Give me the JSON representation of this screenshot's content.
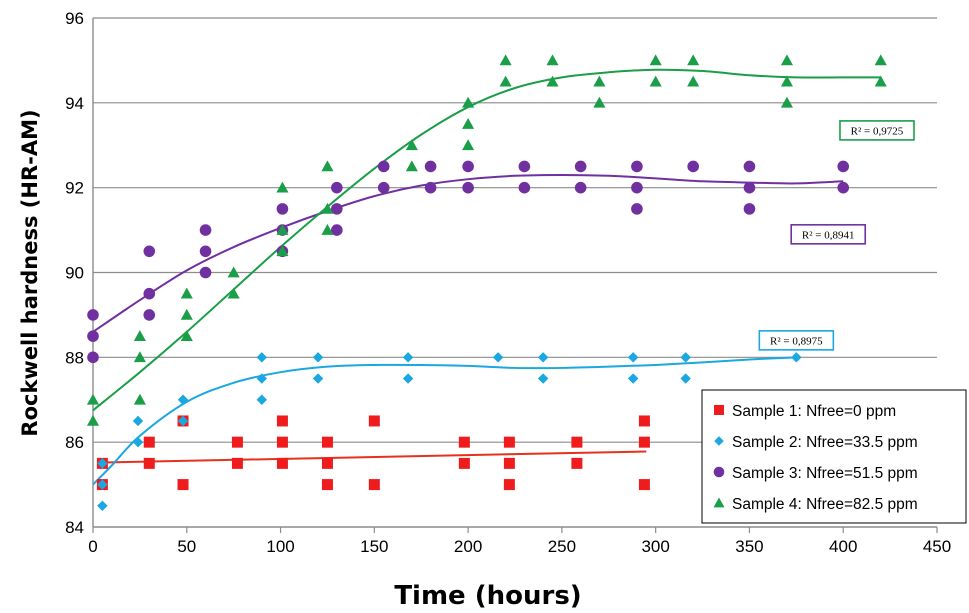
{
  "chart_data": {
    "type": "scatter",
    "xlabel": "Time (hours)",
    "ylabel": "Rockwell hardness (HR-AM)",
    "xlim": [
      0,
      450
    ],
    "ylim": [
      84,
      96
    ],
    "xticks": [
      0,
      50,
      100,
      150,
      200,
      250,
      300,
      350,
      400,
      450
    ],
    "yticks": [
      84,
      86,
      88,
      90,
      92,
      94,
      96
    ],
    "grid": "horizontal",
    "legend_position": "bottom-right",
    "series": [
      {
        "name": "Sample 1: Nfree=0 ppm",
        "marker": "square",
        "color": "#ee1c1c",
        "points": [
          [
            5,
            85.5
          ],
          [
            5,
            85
          ],
          [
            30,
            86
          ],
          [
            30,
            85.5
          ],
          [
            48,
            86.5
          ],
          [
            48,
            85
          ],
          [
            77,
            86
          ],
          [
            77,
            85.5
          ],
          [
            101,
            86.5
          ],
          [
            101,
            86
          ],
          [
            101,
            85.5
          ],
          [
            125,
            86
          ],
          [
            125,
            85.5
          ],
          [
            125,
            85
          ],
          [
            150,
            86.5
          ],
          [
            150,
            85
          ],
          [
            198,
            86
          ],
          [
            198,
            85.5
          ],
          [
            222,
            86
          ],
          [
            222,
            85.5
          ],
          [
            222,
            85
          ],
          [
            258,
            86
          ],
          [
            258,
            85.5
          ],
          [
            294,
            86.5
          ],
          [
            294,
            86
          ],
          [
            294,
            85
          ]
        ],
        "trend": [
          [
            5,
            85.52
          ],
          [
            295,
            85.78
          ]
        ],
        "r2": ""
      },
      {
        "name": "Sample 2: Nfree=33.5 ppm",
        "marker": "diamond",
        "color": "#1ba7e0",
        "points": [
          [
            5,
            85.5
          ],
          [
            5,
            85
          ],
          [
            5,
            84.5
          ],
          [
            24,
            86.5
          ],
          [
            24,
            86
          ],
          [
            48,
            87
          ],
          [
            48,
            86.5
          ],
          [
            90,
            88
          ],
          [
            90,
            87.5
          ],
          [
            90,
            87
          ],
          [
            120,
            88
          ],
          [
            120,
            87.5
          ],
          [
            168,
            88
          ],
          [
            168,
            87.5
          ],
          [
            216,
            88
          ],
          [
            240,
            88
          ],
          [
            240,
            87.5
          ],
          [
            288,
            88
          ],
          [
            288,
            87.5
          ],
          [
            316,
            88
          ],
          [
            316,
            87.5
          ],
          [
            375,
            88
          ]
        ],
        "trend": [
          [
            0,
            85
          ],
          [
            10,
            85.45
          ],
          [
            25,
            86.15
          ],
          [
            50,
            86.95
          ],
          [
            75,
            87.4
          ],
          [
            100,
            87.65
          ],
          [
            125,
            87.78
          ],
          [
            150,
            87.82
          ],
          [
            175,
            87.82
          ],
          [
            200,
            87.8
          ],
          [
            225,
            87.75
          ],
          [
            250,
            87.75
          ],
          [
            275,
            87.78
          ],
          [
            300,
            87.82
          ],
          [
            325,
            87.88
          ],
          [
            350,
            87.95
          ],
          [
            375,
            88
          ]
        ],
        "r2": "R² = 0,8975"
      },
      {
        "name": "Sample 3: Nfree=51.5 ppm",
        "marker": "circle",
        "color": "#7030a0",
        "points": [
          [
            0,
            89
          ],
          [
            0,
            88.5
          ],
          [
            0,
            88
          ],
          [
            30,
            90.5
          ],
          [
            30,
            89.5
          ],
          [
            30,
            89
          ],
          [
            60,
            91
          ],
          [
            60,
            90.5
          ],
          [
            60,
            90
          ],
          [
            101,
            91.5
          ],
          [
            101,
            91
          ],
          [
            101,
            90.5
          ],
          [
            130,
            92
          ],
          [
            130,
            91.5
          ],
          [
            130,
            91
          ],
          [
            155,
            92.5
          ],
          [
            155,
            92
          ],
          [
            180,
            92.5
          ],
          [
            180,
            92
          ],
          [
            200,
            92.5
          ],
          [
            200,
            92
          ],
          [
            230,
            92.5
          ],
          [
            230,
            92
          ],
          [
            260,
            92.5
          ],
          [
            260,
            92
          ],
          [
            290,
            92.5
          ],
          [
            290,
            92
          ],
          [
            290,
            91.5
          ],
          [
            320,
            92.5
          ],
          [
            350,
            92.5
          ],
          [
            350,
            92
          ],
          [
            350,
            91.5
          ],
          [
            400,
            92.5
          ],
          [
            400,
            92
          ]
        ],
        "trend": [
          [
            0,
            88.6
          ],
          [
            25,
            89.35
          ],
          [
            50,
            90.05
          ],
          [
            75,
            90.6
          ],
          [
            100,
            91.05
          ],
          [
            125,
            91.45
          ],
          [
            150,
            91.8
          ],
          [
            175,
            92.05
          ],
          [
            200,
            92.2
          ],
          [
            225,
            92.28
          ],
          [
            250,
            92.3
          ],
          [
            275,
            92.28
          ],
          [
            300,
            92.22
          ],
          [
            325,
            92.15
          ],
          [
            350,
            92.12
          ],
          [
            375,
            92.1
          ],
          [
            400,
            92.15
          ]
        ],
        "r2": "R² = 0,8941"
      },
      {
        "name": "Sample 4: Nfree=82.5 ppm",
        "marker": "triangle",
        "color": "#1a9e48",
        "points": [
          [
            0,
            87
          ],
          [
            0,
            86.5
          ],
          [
            25,
            88.5
          ],
          [
            25,
            88
          ],
          [
            25,
            87
          ],
          [
            50,
            89.5
          ],
          [
            50,
            89
          ],
          [
            50,
            88.5
          ],
          [
            75,
            90
          ],
          [
            75,
            89.5
          ],
          [
            101,
            92
          ],
          [
            101,
            91
          ],
          [
            101,
            90.5
          ],
          [
            125,
            92.5
          ],
          [
            125,
            91.5
          ],
          [
            125,
            91
          ],
          [
            170,
            93
          ],
          [
            170,
            92.5
          ],
          [
            200,
            94
          ],
          [
            200,
            93.5
          ],
          [
            200,
            93
          ],
          [
            220,
            95
          ],
          [
            220,
            94.5
          ],
          [
            245,
            95
          ],
          [
            245,
            94.5
          ],
          [
            270,
            94.5
          ],
          [
            270,
            94
          ],
          [
            300,
            95
          ],
          [
            300,
            94.5
          ],
          [
            320,
            95
          ],
          [
            320,
            94.5
          ],
          [
            370,
            95
          ],
          [
            370,
            94.5
          ],
          [
            370,
            94
          ],
          [
            420,
            95
          ],
          [
            420,
            94.5
          ]
        ],
        "trend": [
          [
            0,
            86.75
          ],
          [
            25,
            87.65
          ],
          [
            50,
            88.6
          ],
          [
            75,
            89.6
          ],
          [
            100,
            90.6
          ],
          [
            125,
            91.55
          ],
          [
            150,
            92.45
          ],
          [
            175,
            93.25
          ],
          [
            200,
            93.9
          ],
          [
            225,
            94.35
          ],
          [
            250,
            94.6
          ],
          [
            275,
            94.72
          ],
          [
            300,
            94.78
          ],
          [
            325,
            94.75
          ],
          [
            350,
            94.65
          ],
          [
            375,
            94.6
          ],
          [
            400,
            94.6
          ],
          [
            420,
            94.6
          ]
        ],
        "r2": "R² = 0,9725"
      }
    ]
  }
}
